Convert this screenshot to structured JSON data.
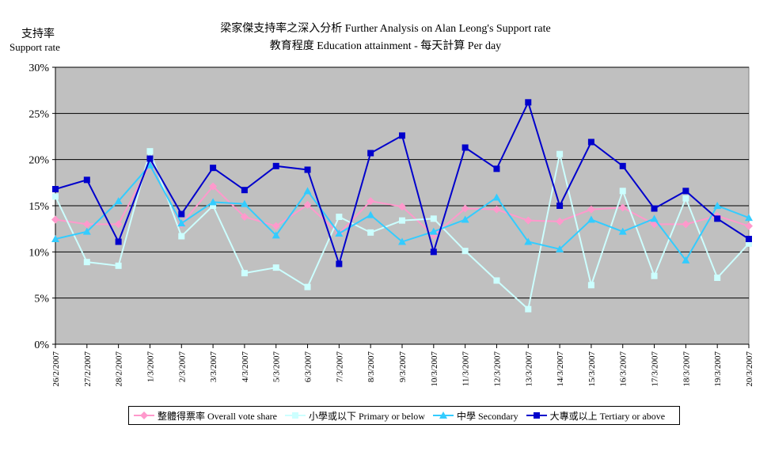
{
  "chart_data": {
    "type": "line",
    "title": "梁家傑支持率之深入分析 Further Analysis on Alan Leong's Support rate",
    "subtitle": "教育程度 Education attainment - 每天計算 Per day",
    "ylabel": "支持率",
    "ylabel_en": "Support rate",
    "ylim": [
      0,
      30
    ],
    "yticks": [
      "0%",
      "5%",
      "10%",
      "15%",
      "20%",
      "25%",
      "30%"
    ],
    "grid": true,
    "legend_position": "bottom",
    "x": [
      "26/2/2007",
      "27/2/2007",
      "28/2/2007",
      "1/3/2007",
      "2/3/2007",
      "3/3/2007",
      "4/3/2007",
      "5/3/2007",
      "6/3/2007",
      "7/3/2007",
      "8/3/2007",
      "9/3/2007",
      "10/3/2007",
      "11/3/2007",
      "12/3/2007",
      "13/3/2007",
      "14/3/2007",
      "15/3/2007",
      "16/3/2007",
      "17/3/2007",
      "18/3/2007",
      "19/3/2007",
      "20/3/2007"
    ],
    "series": [
      {
        "name": "整體得票率 Overall vote share",
        "color": "#ff99cc",
        "marker": "diamond",
        "values": [
          13.5,
          13.0,
          13.0,
          19.5,
          13.0,
          17.1,
          13.8,
          12.8,
          15.1,
          12.0,
          15.5,
          14.9,
          11.8,
          14.7,
          14.6,
          13.4,
          13.3,
          14.6,
          14.8,
          13.0,
          13.0,
          13.9,
          12.8
        ]
      },
      {
        "name": "小學或以下 Primary or below",
        "color": "#ccffff",
        "marker": "square",
        "values": [
          16.0,
          8.9,
          8.5,
          20.9,
          11.7,
          15.0,
          7.7,
          8.3,
          6.2,
          13.8,
          12.1,
          13.4,
          13.6,
          10.1,
          6.9,
          3.8,
          20.6,
          6.4,
          16.6,
          7.4,
          15.8,
          7.2,
          10.9
        ]
      },
      {
        "name": "中學 Secondary",
        "color": "#33ccff",
        "marker": "triangle",
        "values": [
          11.4,
          12.2,
          15.5,
          19.4,
          13.1,
          15.4,
          15.2,
          11.8,
          16.6,
          12.0,
          14.0,
          11.1,
          12.2,
          13.5,
          15.9,
          11.1,
          10.3,
          13.5,
          12.2,
          13.6,
          9.1,
          15.0,
          13.7
        ]
      },
      {
        "name": "大專或以上 Tertiary or above",
        "color": "#0000cc",
        "marker": "square",
        "values": [
          16.8,
          17.8,
          11.1,
          20.1,
          14.1,
          19.1,
          16.7,
          19.3,
          18.9,
          8.7,
          20.7,
          22.6,
          10.0,
          21.3,
          19.0,
          26.2,
          15.0,
          21.9,
          19.3,
          14.7,
          16.6,
          13.6,
          11.4
        ]
      }
    ]
  }
}
